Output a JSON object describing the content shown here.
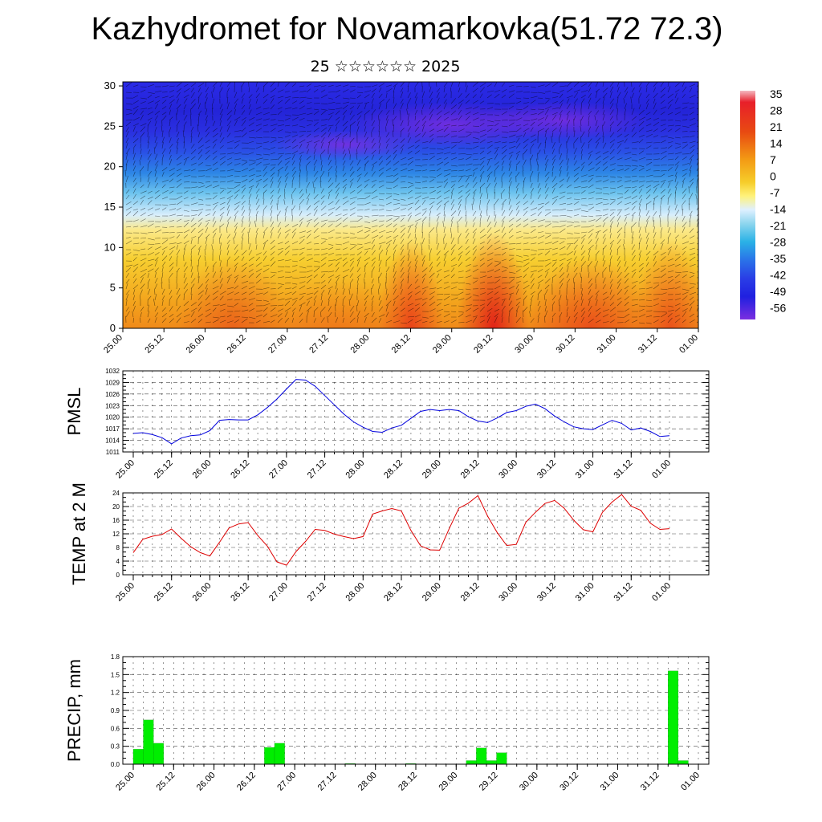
{
  "title": "Kazhydromet for Novamarkovka(51.72 72.3)",
  "subtitle": "25 ☆☆☆☆☆☆ 2025",
  "colors": {
    "pmsl": "#0000dd",
    "temp": "#dd0000",
    "precip": "#00ee00"
  },
  "chart_data": [
    {
      "type": "heatmap",
      "name": "upper-air-cross-section",
      "x_ticks": [
        "25.00",
        "25.12",
        "26.00",
        "26.12",
        "27.00",
        "27.12",
        "28.00",
        "28.12",
        "29.00",
        "29.12",
        "30.00",
        "30.12",
        "31.00",
        "31.12",
        "01.00"
      ],
      "y_ticks": [
        0,
        5,
        10,
        15,
        20,
        25,
        30
      ],
      "ylim": [
        0,
        30.5
      ],
      "colorbar": {
        "labels": [
          35,
          28,
          21,
          14,
          7,
          0,
          -7,
          -14,
          -21,
          -28,
          -35,
          -42,
          -49,
          -56
        ],
        "range": [
          -60,
          38
        ]
      },
      "overlay": "wind barbs"
    },
    {
      "type": "line",
      "ylabel": "PMSL",
      "x_ticks": [
        "25.00",
        "25.12",
        "26.00",
        "26.12",
        "27.00",
        "27.12",
        "28.00",
        "28.12",
        "29.00",
        "29.12",
        "30.00",
        "30.12",
        "31.00",
        "31.12",
        "01.00"
      ],
      "y_ticks": [
        1011,
        1014,
        1017,
        1020,
        1023,
        1026,
        1029,
        1032
      ],
      "ylim": [
        1011,
        1032
      ],
      "x": [
        0,
        3,
        6,
        9,
        12,
        15,
        18,
        21,
        24,
        27,
        30,
        33,
        36,
        39,
        42,
        45,
        48,
        51,
        54,
        57,
        60,
        63,
        66,
        69,
        72,
        75,
        78,
        81,
        84,
        87,
        90,
        93,
        96,
        99,
        102,
        105,
        108,
        111,
        114,
        117,
        120,
        123,
        126,
        129,
        132,
        135,
        138,
        141,
        144,
        147,
        150,
        153,
        156,
        159,
        162,
        165,
        168
      ],
      "values": [
        1015.8,
        1016.0,
        1015.5,
        1014.7,
        1013.1,
        1014.6,
        1015.2,
        1015.4,
        1016.5,
        1019.2,
        1019.4,
        1019.3,
        1019.3,
        1020.6,
        1022.5,
        1024.7,
        1027.3,
        1029.8,
        1029.6,
        1028.0,
        1025.6,
        1023.2,
        1020.8,
        1018.8,
        1017.4,
        1016.3,
        1016.1,
        1017.2,
        1017.9,
        1019.7,
        1021.5,
        1022.0,
        1021.7,
        1022.0,
        1021.7,
        1020.1,
        1019.0,
        1018.6,
        1019.8,
        1021.2,
        1021.7,
        1022.8,
        1023.4,
        1022.2,
        1020.3,
        1018.8,
        1017.5,
        1017.0,
        1016.8,
        1018.0,
        1019.2,
        1018.4,
        1016.7,
        1017.2,
        1016.3,
        1015.0,
        1015.2
      ]
    },
    {
      "type": "line",
      "ylabel": "TEMP at 2 M",
      "x_ticks": [
        "25.00",
        "25.12",
        "26.00",
        "26.12",
        "27.00",
        "27.12",
        "28.00",
        "28.12",
        "29.00",
        "29.12",
        "30.00",
        "30.12",
        "31.00",
        "31.12",
        "01.00"
      ],
      "y_ticks": [
        0,
        4,
        8,
        12,
        16,
        20,
        24
      ],
      "ylim": [
        0,
        24
      ],
      "x": [
        0,
        3,
        6,
        9,
        12,
        15,
        18,
        21,
        24,
        27,
        30,
        33,
        36,
        39,
        42,
        45,
        48,
        51,
        54,
        57,
        60,
        63,
        66,
        69,
        72,
        75,
        78,
        81,
        84,
        87,
        90,
        93,
        96,
        99,
        102,
        105,
        108,
        111,
        114,
        117,
        120,
        123,
        126,
        129,
        132,
        135,
        138,
        141,
        144,
        147,
        150,
        153,
        156,
        159,
        162,
        165,
        168
      ],
      "values": [
        6.5,
        10.4,
        11.3,
        11.8,
        13.4,
        10.7,
        8.2,
        6.5,
        5.5,
        9.5,
        13.7,
        14.9,
        15.3,
        11.5,
        8.4,
        3.8,
        2.8,
        6.8,
        9.8,
        13.3,
        13.0,
        11.9,
        11.2,
        10.6,
        11.2,
        17.8,
        18.7,
        19.4,
        18.7,
        13.0,
        8.5,
        7.3,
        7.2,
        13.5,
        19.5,
        21.0,
        23.2,
        17.2,
        12.4,
        8.6,
        8.9,
        15.4,
        18.3,
        20.9,
        21.8,
        19.5,
        16.0,
        13.2,
        12.6,
        18.3,
        21.3,
        23.5,
        20.1,
        18.9,
        15.1,
        13.3,
        13.5
      ]
    },
    {
      "type": "bar",
      "ylabel": "PRECIP, mm",
      "x_ticks": [
        "25.00",
        "25.12",
        "26.00",
        "26.12",
        "27.00",
        "27.12",
        "28.00",
        "28.12",
        "29.00",
        "29.12",
        "30.00",
        "30.12",
        "31.00",
        "31.12",
        "01.00"
      ],
      "y_ticks": [
        0.0,
        0.3,
        0.6,
        0.9,
        1.2,
        1.5,
        1.8
      ],
      "ylim": [
        0,
        1.8
      ],
      "x": [
        0,
        3,
        6,
        9,
        12,
        15,
        18,
        21,
        24,
        27,
        30,
        33,
        36,
        39,
        42,
        45,
        48,
        51,
        54,
        57,
        60,
        63,
        66,
        69,
        72,
        75,
        78,
        81,
        84,
        87,
        90,
        93,
        96,
        99,
        102,
        105,
        108,
        111,
        114,
        117,
        120,
        123,
        126,
        129,
        132,
        135,
        138,
        141,
        144,
        147,
        150,
        153,
        156,
        159,
        162,
        165
      ],
      "values": [
        0.25,
        0.74,
        0.35,
        0,
        0,
        0,
        0,
        0,
        0,
        0,
        0,
        0,
        0,
        0.28,
        0.35,
        0,
        0,
        0,
        0,
        0,
        0,
        0.01,
        0,
        0,
        0,
        0,
        0,
        0.01,
        0,
        0,
        0,
        0,
        0,
        0.06,
        0.27,
        0.06,
        0.19,
        0,
        0,
        0,
        0,
        0,
        0,
        0,
        0,
        0,
        0,
        0,
        0,
        0,
        0,
        0,
        0,
        1.56,
        0.06,
        0
      ]
    }
  ]
}
